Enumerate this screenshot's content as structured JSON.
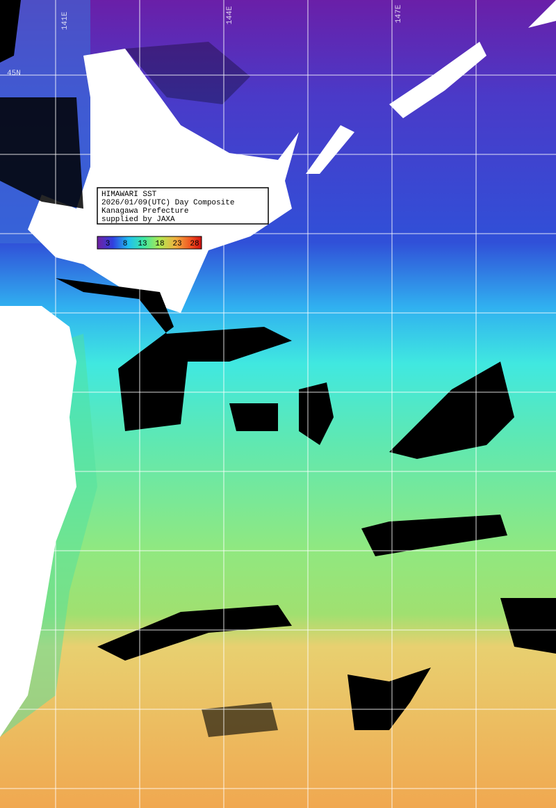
{
  "legend": {
    "lines": [
      "HIMAWARI SST",
      "2026/01/09(UTC) Day Composite",
      "Kanagawa Prefecture",
      "supplied by JAXA"
    ]
  },
  "colorbar": {
    "labels": [
      3,
      8,
      13,
      18,
      23,
      28
    ]
  },
  "grid_labels": {
    "longitudes": [
      "141E",
      "144E",
      "147E"
    ],
    "latitudes": [
      "45N"
    ]
  }
}
